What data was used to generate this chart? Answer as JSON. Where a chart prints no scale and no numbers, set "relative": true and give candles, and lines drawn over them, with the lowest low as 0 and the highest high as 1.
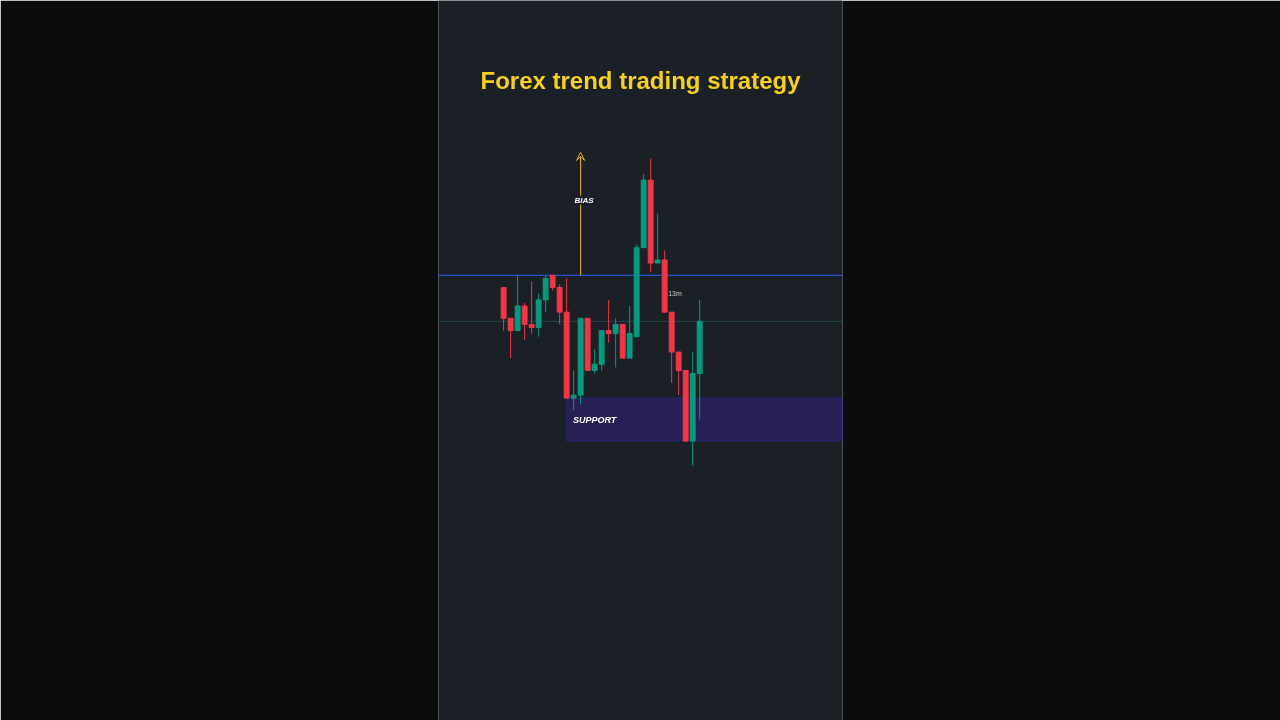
{
  "chart_data": {
    "type": "candlestick",
    "title": "Forex trend trading strategy",
    "relative": true,
    "categories": [
      null,
      null,
      null,
      null,
      null,
      null,
      null,
      null,
      null,
      null,
      null,
      null,
      null,
      null,
      null,
      null,
      null,
      null,
      null,
      null,
      null,
      null,
      null,
      null,
      null,
      null,
      null,
      null,
      null
    ],
    "ohlc": [
      [
        0.58,
        0.58,
        0.44,
        0.48
      ],
      [
        0.48,
        0.48,
        0.35,
        0.44
      ],
      [
        0.44,
        0.62,
        0.44,
        0.52
      ],
      [
        0.52,
        0.53,
        0.41,
        0.46
      ],
      [
        0.46,
        0.6,
        0.43,
        0.45
      ],
      [
        0.45,
        0.56,
        0.42,
        0.54
      ],
      [
        0.54,
        0.62,
        0.5,
        0.61
      ],
      [
        0.62,
        0.62,
        0.57,
        0.58
      ],
      [
        0.58,
        0.59,
        0.46,
        0.5
      ],
      [
        0.5,
        0.61,
        0.22,
        0.22
      ],
      [
        0.22,
        0.31,
        0.18,
        0.23
      ],
      [
        0.23,
        0.48,
        0.2,
        0.48
      ],
      [
        0.48,
        0.48,
        0.31,
        0.31
      ],
      [
        0.31,
        0.38,
        0.3,
        0.33
      ],
      [
        0.33,
        0.44,
        0.31,
        0.44
      ],
      [
        0.44,
        0.54,
        0.4,
        0.43
      ],
      [
        0.43,
        0.48,
        0.32,
        0.46
      ],
      [
        0.46,
        0.46,
        0.35,
        0.35
      ],
      [
        0.35,
        0.52,
        0.35,
        0.43
      ],
      [
        0.42,
        0.72,
        0.42,
        0.71
      ],
      [
        0.71,
        0.95,
        0.71,
        0.93
      ],
      [
        0.93,
        1.0,
        0.63,
        0.66
      ],
      [
        0.66,
        0.82,
        0.66,
        0.67
      ],
      [
        0.67,
        0.7,
        0.5,
        0.5
      ],
      [
        0.5,
        0.5,
        0.27,
        0.37
      ],
      [
        0.37,
        0.37,
        0.23,
        0.31
      ],
      [
        0.31,
        0.31,
        0.08,
        0.08
      ],
      [
        0.08,
        0.37,
        0.0,
        0.3
      ],
      [
        0.3,
        0.54,
        0.15,
        0.47
      ]
    ],
    "colors": [
      "#f23645",
      "#f23645",
      "#089981",
      "#f23645",
      "#f23645",
      "#089981",
      "#089981",
      "#f23645",
      "#f23645",
      "#f23645",
      "#089981",
      "#089981",
      "#f23645",
      "#089981",
      "#089981",
      "#f23645",
      "#089981",
      "#f23645",
      "#089981",
      "#089981",
      "#089981",
      "#f23645",
      "#089981",
      "#f23645",
      "#f23645",
      "#f23645",
      "#f23645",
      "#089981",
      "#089981"
    ],
    "ref_lines": [
      {
        "axis": "y",
        "value": 0.62,
        "color": "#2962ff",
        "line_style": "solid"
      },
      {
        "axis": "y",
        "value": 0.47,
        "color": "#1f4a44",
        "line_style": "solid"
      }
    ],
    "bands": [
      {
        "axis": "y",
        "from": 0.08,
        "to": 0.22,
        "label": "SUPPORT",
        "color": "#2a1f5a"
      }
    ],
    "annotations": [
      "BIAS",
      "13m"
    ],
    "grid": false
  }
}
